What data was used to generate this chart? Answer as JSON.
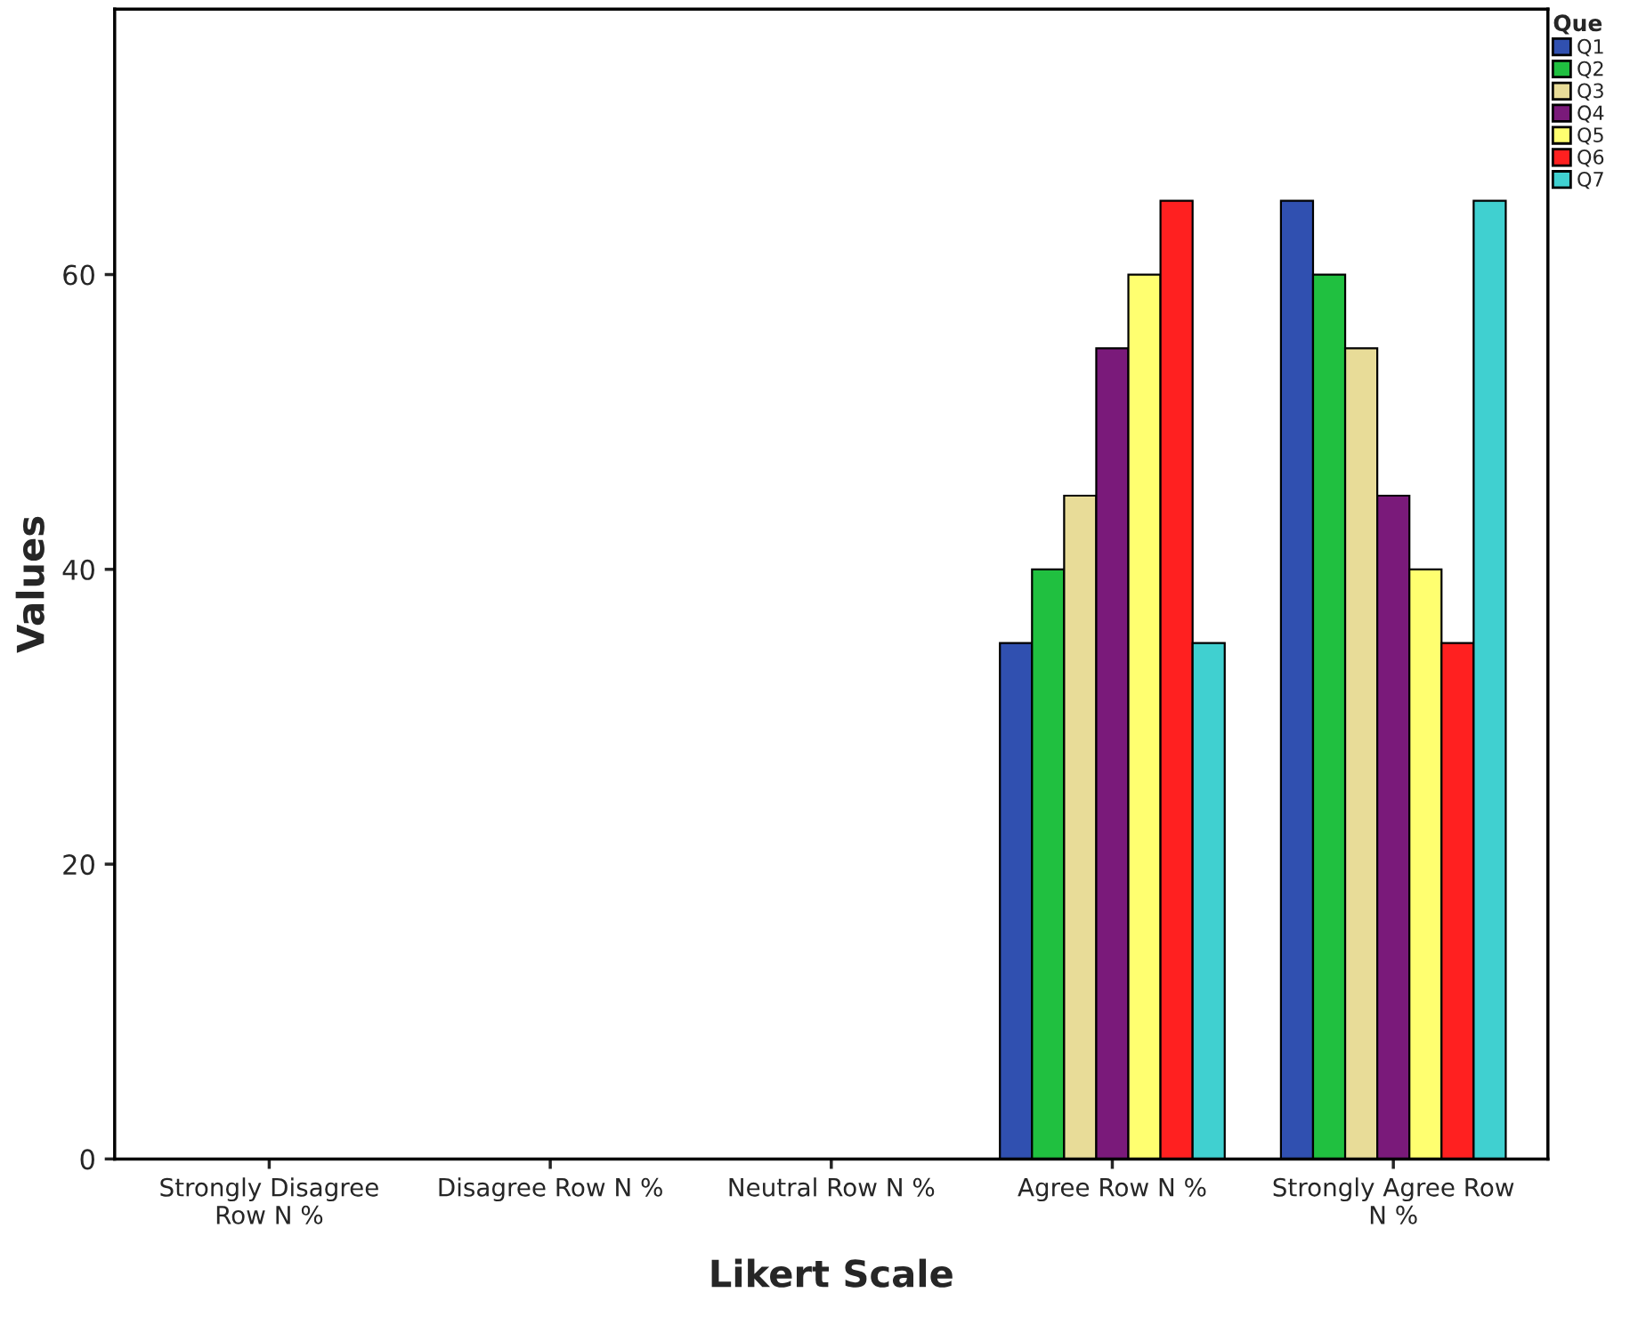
{
  "chart_data": {
    "type": "bar",
    "xlabel": "Likert Scale",
    "ylabel": "Values",
    "legend_title": "Que",
    "legend": "top right",
    "grid": false,
    "categories": [
      "Strongly Disagree\nRow N %",
      "Disagree Row N %",
      "Neutral Row N %",
      "Agree Row N %",
      "Strongly Agree Row\nN %"
    ],
    "ylim": [
      0,
      78
    ],
    "yticks": [
      0,
      20,
      40,
      60
    ],
    "series": [
      {
        "name": "Q1",
        "color": "#3050b0",
        "values": [
          0,
          0,
          0,
          35,
          65
        ]
      },
      {
        "name": "Q2",
        "color": "#20c040",
        "values": [
          0,
          0,
          0,
          40,
          60
        ]
      },
      {
        "name": "Q3",
        "color": "#e8dc98",
        "values": [
          0,
          0,
          0,
          45,
          55
        ]
      },
      {
        "name": "Q4",
        "color": "#7a1a7a",
        "values": [
          0,
          0,
          0,
          55,
          45
        ]
      },
      {
        "name": "Q5",
        "color": "#ffff70",
        "values": [
          0,
          0,
          0,
          60,
          40
        ]
      },
      {
        "name": "Q6",
        "color": "#ff2020",
        "values": [
          0,
          0,
          0,
          65,
          35
        ]
      },
      {
        "name": "Q7",
        "color": "#40d0d0",
        "values": [
          0,
          0,
          0,
          35,
          65
        ]
      }
    ]
  }
}
